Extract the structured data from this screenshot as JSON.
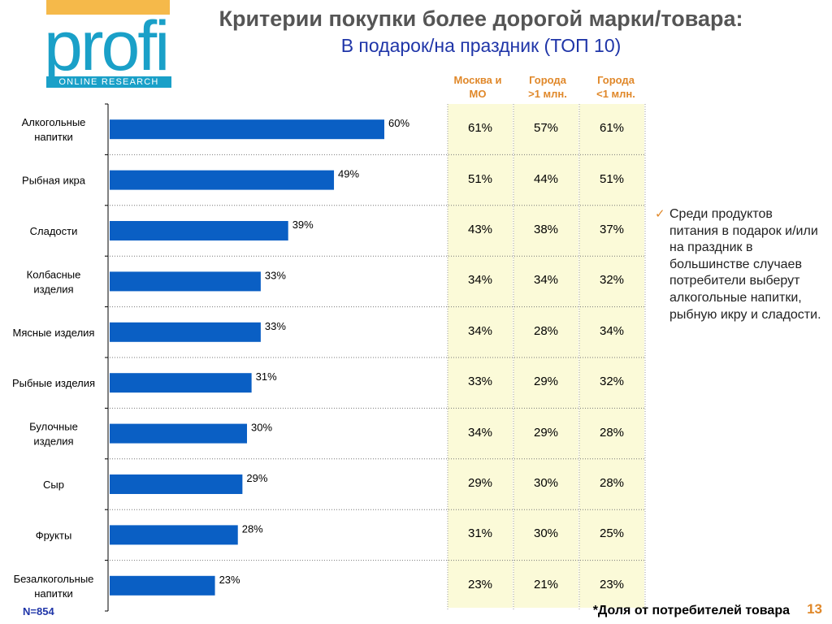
{
  "logo": {
    "word": "profi",
    "sub": "ONLINE RESEARCH"
  },
  "title": "Критерии покупки более дорогой марки/товара:",
  "subtitle": "В подарок/на праздник (ТОП 10)",
  "columns": [
    {
      "line1": "Москва и",
      "line2": "МО"
    },
    {
      "line1": "Города",
      "line2": ">1 млн."
    },
    {
      "line1": "Города",
      "line2": "<1 млн."
    }
  ],
  "colors": {
    "bar": "#0a5fc4",
    "table_bg": "#fbfad8",
    "accent": "#e0882a",
    "title": "#555555",
    "subtitle": "#1f35a8"
  },
  "chart_data": {
    "type": "bar",
    "orientation": "horizontal",
    "categories": [
      [
        "Алкогольные",
        "напитки"
      ],
      [
        "Рыбная икра"
      ],
      [
        "Сладости"
      ],
      [
        "Колбасные",
        "изделия"
      ],
      [
        "Мясные изделия"
      ],
      [
        "Рыбные изделия"
      ],
      [
        "Булочные",
        "изделия"
      ],
      [
        "Сыр"
      ],
      [
        "Фрукты"
      ],
      [
        "Безалкогольные",
        "напитки"
      ]
    ],
    "values": [
      60,
      49,
      39,
      33,
      33,
      31,
      30,
      29,
      28,
      23
    ],
    "value_labels": [
      "60%",
      "49%",
      "39%",
      "33%",
      "33%",
      "31%",
      "30%",
      "29%",
      "28%",
      "23%"
    ],
    "xlim": [
      0,
      100
    ]
  },
  "table": {
    "rows": [
      [
        "61%",
        "57%",
        "61%"
      ],
      [
        "51%",
        "44%",
        "51%"
      ],
      [
        "43%",
        "38%",
        "37%"
      ],
      [
        "34%",
        "34%",
        "32%"
      ],
      [
        "34%",
        "28%",
        "34%"
      ],
      [
        "33%",
        "29%",
        "32%"
      ],
      [
        "34%",
        "29%",
        "28%"
      ],
      [
        "29%",
        "30%",
        "28%"
      ],
      [
        "31%",
        "30%",
        "25%"
      ],
      [
        "23%",
        "21%",
        "23%"
      ]
    ]
  },
  "note": "Среди продуктов питания в подарок и/или на праздник в большинстве случаев потребители выберут алкогольные напитки, рыбную икру и сладости.",
  "sample": "N=854",
  "footnote": "*Доля  от потребителей товара",
  "page_number": "13"
}
